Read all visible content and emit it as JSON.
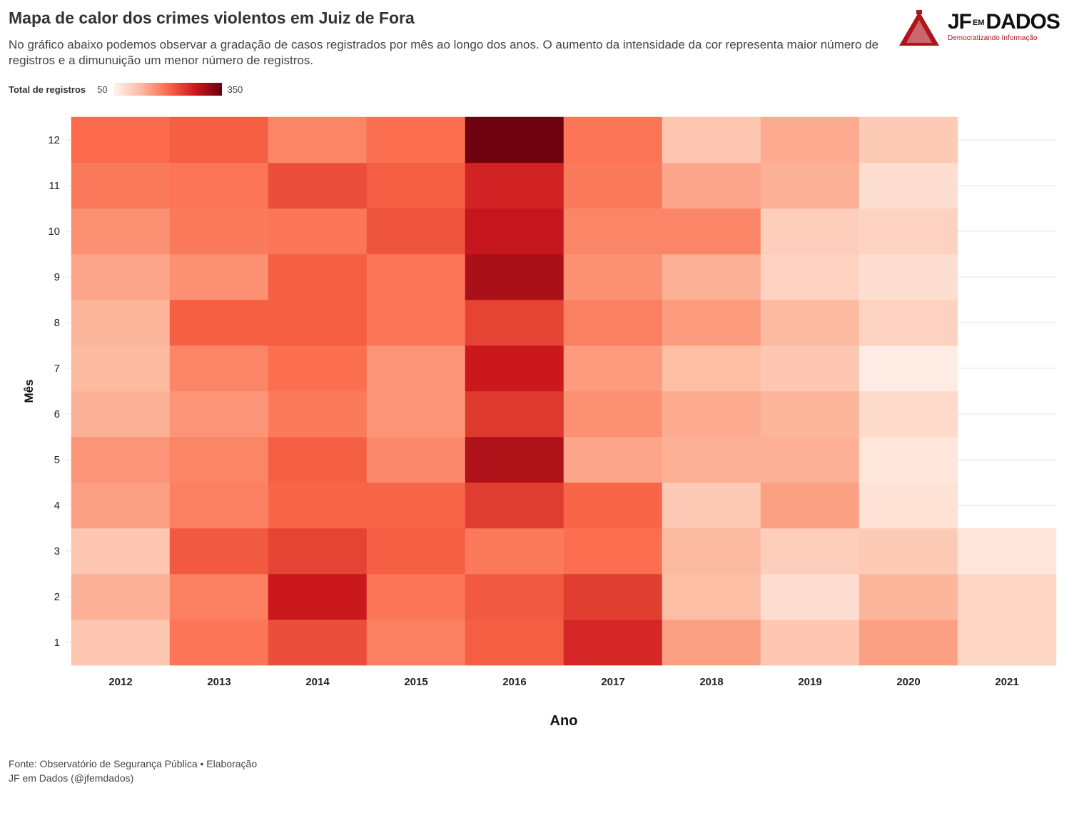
{
  "header": {
    "title": "Mapa de calor dos crimes violentos em Juiz de Fora",
    "subtitle": "No gráfico abaixo podemos observar a gradação de casos registrados por mês ao longo dos anos. O aumento da intensidade da cor representa maior número de registros e a dimunuição um menor número de registros."
  },
  "legend": {
    "title": "Total de registros",
    "min_label": "50",
    "max_label": "350",
    "min": 50,
    "max": 350,
    "colors": [
      "#fff5f0",
      "#fcbba1",
      "#fb6a4a",
      "#cb181d",
      "#67000d"
    ]
  },
  "logo": {
    "brand_left": "JF",
    "brand_mid": "EM",
    "brand_right": "DADOS",
    "tagline": "Democratizando Informação"
  },
  "source": {
    "line1": "Fonte: Observatório de Segurança Pública • Elaboração",
    "line2": "JF em Dados (@jfemdados)"
  },
  "chart_data": {
    "type": "heatmap",
    "xlabel": "Ano",
    "ylabel": "Mês",
    "x": [
      "2012",
      "2013",
      "2014",
      "2015",
      "2016",
      "2017",
      "2018",
      "2019",
      "2020",
      "2021"
    ],
    "y": [
      "1",
      "2",
      "3",
      "4",
      "5",
      "6",
      "7",
      "8",
      "9",
      "10",
      "11",
      "12"
    ],
    "color_range": [
      50,
      350
    ],
    "grid": true,
    "legend_position": "top-left",
    "values": [
      [
        110,
        190,
        225,
        180,
        210,
        260,
        150,
        110,
        150,
        90
      ],
      [
        135,
        180,
        275,
        190,
        215,
        240,
        120,
        80,
        130,
        90
      ],
      [
        110,
        215,
        235,
        210,
        185,
        195,
        125,
        100,
        105,
        70
      ],
      [
        150,
        180,
        205,
        205,
        240,
        205,
        105,
        150,
        75,
        null
      ],
      [
        160,
        175,
        210,
        170,
        295,
        145,
        135,
        135,
        70,
        null
      ],
      [
        135,
        160,
        185,
        160,
        245,
        165,
        140,
        130,
        85,
        null
      ],
      [
        125,
        175,
        195,
        160,
        275,
        155,
        120,
        110,
        60,
        null
      ],
      [
        130,
        210,
        210,
        190,
        235,
        180,
        155,
        125,
        95,
        null
      ],
      [
        145,
        165,
        210,
        190,
        300,
        165,
        135,
        95,
        80,
        null
      ],
      [
        165,
        185,
        190,
        220,
        280,
        175,
        175,
        100,
        95,
        null
      ],
      [
        185,
        190,
        225,
        210,
        265,
        185,
        145,
        135,
        80,
        null
      ],
      [
        200,
        210,
        175,
        195,
        345,
        190,
        110,
        140,
        105,
        null
      ]
    ]
  }
}
